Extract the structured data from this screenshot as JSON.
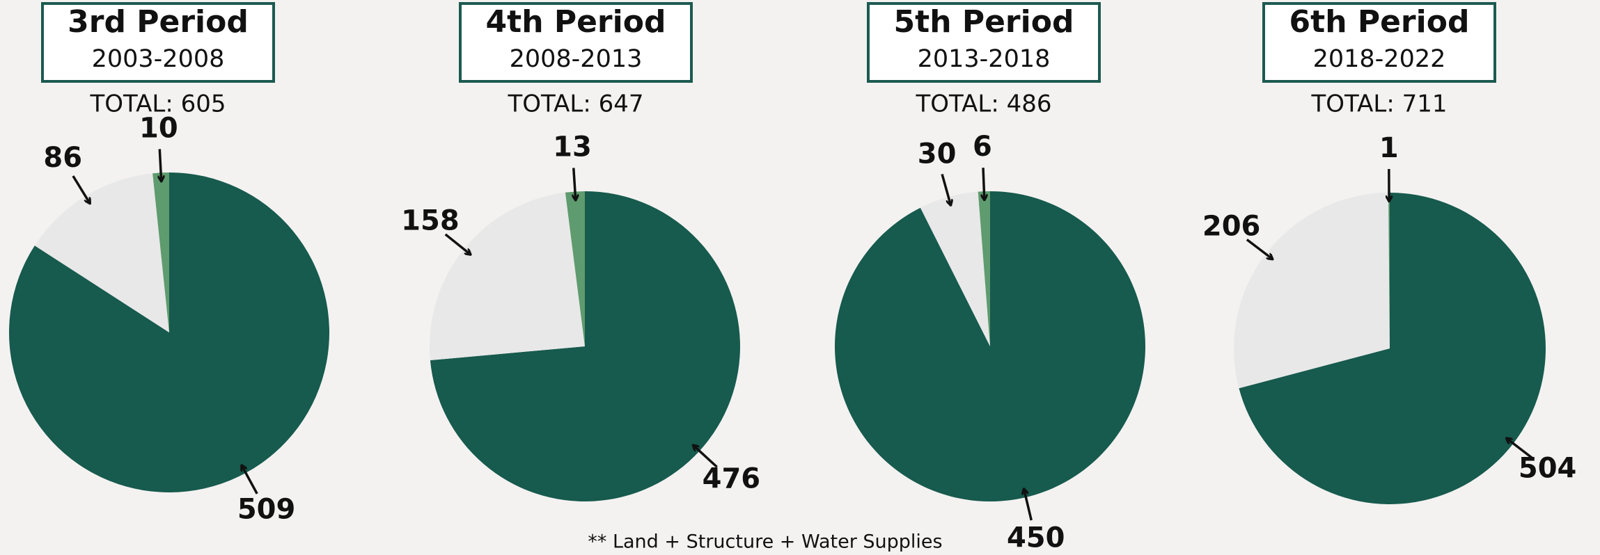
{
  "chart_data": [
    {
      "type": "pie",
      "title": "3rd Period",
      "subtitle": "2003-2008",
      "total": "TOTAL: 605",
      "values": [
        509,
        86,
        10
      ],
      "colors": [
        "#175a4e",
        "#e8e8e8",
        "#5e9b6e"
      ]
    },
    {
      "type": "pie",
      "title": "4th Period",
      "subtitle": "2008-2013",
      "total": "TOTAL: 647",
      "values": [
        476,
        158,
        13
      ],
      "colors": [
        "#175a4e",
        "#e8e8e8",
        "#5e9b6e"
      ]
    },
    {
      "type": "pie",
      "title": "5th Period",
      "subtitle": "2013-2018",
      "total": "TOTAL: 486",
      "values": [
        450,
        30,
        6
      ],
      "colors": [
        "#175a4e",
        "#e8e8e8",
        "#5e9b6e"
      ]
    },
    {
      "type": "pie",
      "title": "6th Period",
      "subtitle": "2018-2022",
      "total": "TOTAL: 711",
      "values": [
        504,
        206,
        1
      ],
      "colors": [
        "#175a4e",
        "#e8e8e8",
        "#5e9b6e"
      ]
    }
  ],
  "footnote": "** Land + Structure + Water Supplies"
}
